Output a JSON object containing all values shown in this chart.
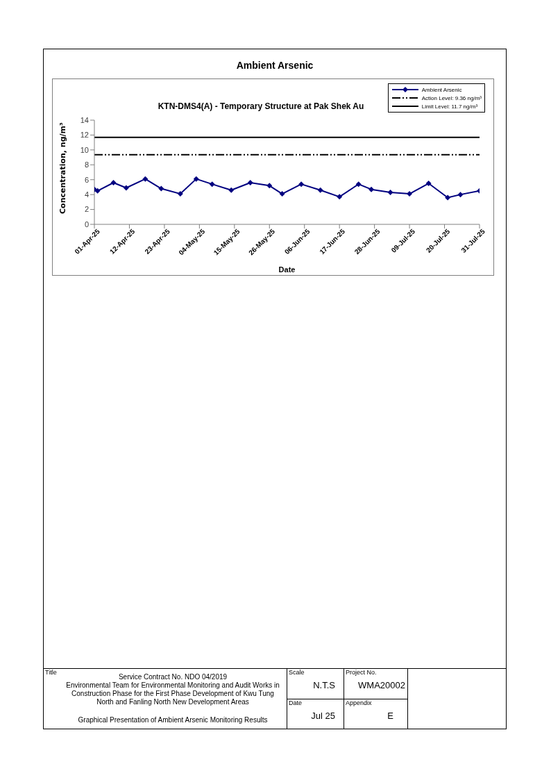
{
  "chart_data": {
    "type": "line",
    "title": "Ambient Arsenic",
    "subtitle": "KTN-DMS4(A) - Temporary Structure at Pak Shek Au",
    "xlabel": "Date",
    "ylabel": "Concentration, ng/m³",
    "x": [
      "--04-01",
      "--04-02",
      "--04-07",
      "--04-11",
      "--04-17",
      "--04-22",
      "--04-28",
      "--05-03",
      "--05-08",
      "--05-14",
      "--05-20",
      "--05-26",
      "--05-30",
      "--06-05",
      "--06-11",
      "--06-17",
      "--06-23",
      "--06-27",
      "--07-03",
      "--07-09",
      "--07-15",
      "--07-21",
      "--07-25",
      "--07-31"
    ],
    "series": [
      {
        "name": "Ambient Arsenic",
        "color": "#000080",
        "values": [
          4.7,
          4.5,
          5.6,
          4.9,
          6.1,
          4.8,
          4.1,
          6.1,
          5.4,
          4.6,
          5.6,
          5.2,
          4.1,
          5.4,
          4.6,
          3.7,
          5.4,
          4.7,
          4.3,
          4.1,
          5.5,
          3.6,
          4.0,
          4.5
        ]
      }
    ],
    "ref_lines": [
      {
        "axis": "y",
        "value": 9.36,
        "label": "Action Level: 9.36 ng/m³",
        "color": "#000000",
        "line_style": "dashed"
      },
      {
        "axis": "y",
        "value": 11.7,
        "label": "Limit Level: 11.7 ng/m³",
        "color": "#000000",
        "line_style": "solid"
      }
    ],
    "xlim": [
      "--04-01",
      "--07-31"
    ],
    "xticks": [
      {
        "value": "--04-01",
        "label": "01-Apr-25"
      },
      {
        "value": "--04-12",
        "label": "12-Apr-25"
      },
      {
        "value": "--04-23",
        "label": "23-Apr-25"
      },
      {
        "value": "--05-04",
        "label": "04-May-25"
      },
      {
        "value": "--05-15",
        "label": "15-May-25"
      },
      {
        "value": "--05-26",
        "label": "26-May-25"
      },
      {
        "value": "--06-06",
        "label": "06-Jun-25"
      },
      {
        "value": "--06-17",
        "label": "17-Jun-25"
      },
      {
        "value": "--06-28",
        "label": "28-Jun-25"
      },
      {
        "value": "--07-09",
        "label": "09-Jul-25"
      },
      {
        "value": "--07-20",
        "label": "20-Jul-25"
      },
      {
        "value": "--07-31",
        "label": "31-Jul-25"
      }
    ],
    "ylim": [
      0,
      14
    ],
    "yticks": [
      0,
      2,
      4,
      6,
      8,
      10,
      12,
      14
    ],
    "grid": false,
    "legend": "top right",
    "marker": "diamond",
    "line_style": "solid",
    "annotations": [
      "Title",
      "Service Contract No. NDO 04/2019",
      "Environmental Team for Environmental Monitoring and Audit Works in Construction Phase for the First Phase Development of Kwu Tung North and Fanling North New Development Areas",
      "Graphical Presentation of Ambient Arsenic Monitoring Results",
      "Scale",
      "N.T.S",
      "Project No.",
      "WMA20002",
      "Date",
      "Jul 25",
      "Appendix",
      "E"
    ]
  }
}
